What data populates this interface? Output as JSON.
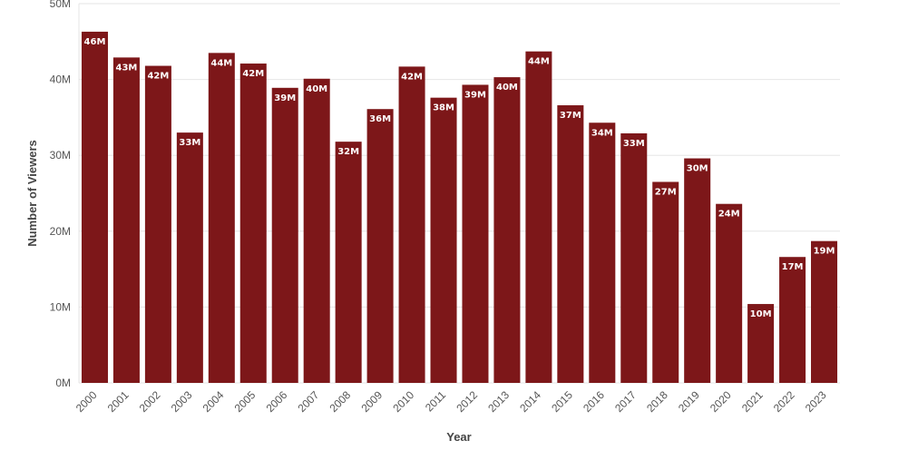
{
  "chart_data": {
    "type": "bar",
    "title": "",
    "xlabel": "Year",
    "ylabel": "Number of Viewers",
    "categories": [
      "2000",
      "2001",
      "2002",
      "2003",
      "2004",
      "2005",
      "2006",
      "2007",
      "2008",
      "2009",
      "2010",
      "2011",
      "2012",
      "2013",
      "2014",
      "2015",
      "2016",
      "2017",
      "2018",
      "2019",
      "2020",
      "2021",
      "2022",
      "2023"
    ],
    "values": [
      46.3,
      42.9,
      41.8,
      33.0,
      43.5,
      42.1,
      38.9,
      40.1,
      31.8,
      36.1,
      41.7,
      37.6,
      39.3,
      40.3,
      43.7,
      36.6,
      34.3,
      32.9,
      26.5,
      29.6,
      23.6,
      10.4,
      16.6,
      18.7
    ],
    "data_labels": [
      "46M",
      "43M",
      "42M",
      "33M",
      "44M",
      "42M",
      "39M",
      "40M",
      "32M",
      "36M",
      "42M",
      "38M",
      "39M",
      "40M",
      "44M",
      "37M",
      "34M",
      "33M",
      "27M",
      "30M",
      "24M",
      "10M",
      "17M",
      "19M"
    ],
    "y_ticks": [
      0,
      10,
      20,
      30,
      40,
      50
    ],
    "y_tick_labels": [
      "0M",
      "10M",
      "20M",
      "30M",
      "40M",
      "50M"
    ],
    "ylim": [
      0,
      50
    ],
    "grid": true,
    "legend": "none",
    "bar_color": "#7d1719"
  }
}
